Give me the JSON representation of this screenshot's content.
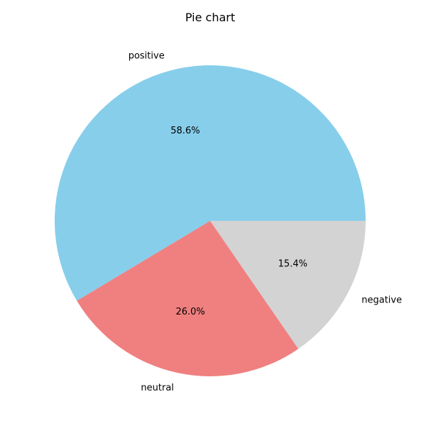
{
  "chart_data": {
    "type": "pie",
    "title": "Pie chart",
    "slices": [
      {
        "label": "positive",
        "value": 58.6,
        "pct_label": "58.6%",
        "color": "#87CEEB"
      },
      {
        "label": "neutral",
        "value": 26.0,
        "pct_label": "26.0%",
        "color": "#F08080"
      },
      {
        "label": "negative",
        "value": 15.4,
        "pct_label": "15.4%",
        "color": "#D3D3D3"
      }
    ],
    "start_angle_deg": 0,
    "direction": "counterclockwise",
    "legend": "none"
  }
}
